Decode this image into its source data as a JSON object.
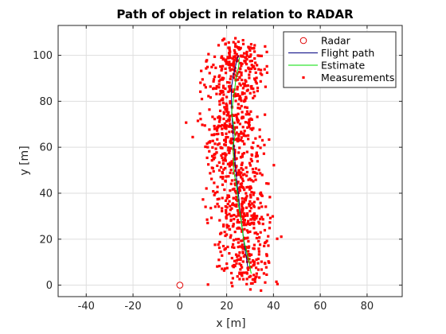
{
  "chart_data": {
    "type": "scatter",
    "title": "Path of object in relation to RADAR",
    "xlabel": "x [m]",
    "ylabel": "y [m]",
    "xlim": [
      -52,
      95
    ],
    "ylim": [
      -5,
      113
    ],
    "xticks": [
      -40,
      -20,
      0,
      20,
      40,
      60,
      80
    ],
    "yticks": [
      0,
      20,
      40,
      60,
      80,
      100
    ],
    "xtick_labels": [
      "-40",
      "-20",
      "0",
      "20",
      "40",
      "60",
      "80"
    ],
    "ytick_labels": [
      "0",
      "20",
      "40",
      "60",
      "80",
      "100"
    ],
    "grid": true,
    "legend_position": "top-right",
    "series": [
      {
        "name": "Radar",
        "kind": "marker-circle",
        "color": "#e00000",
        "points": [
          [
            0,
            0
          ]
        ]
      },
      {
        "name": "Flight path",
        "kind": "line",
        "color": "#00007f",
        "x": [
          29,
          28.3,
          27.5,
          26.9,
          26.2,
          25.6,
          25.2,
          24.6,
          24.1,
          23.6,
          23.3,
          22.9,
          22.6,
          22.3,
          22.1,
          22.0,
          22.2,
          22.8,
          23.5,
          24.2,
          25.0
        ],
        "y": [
          8,
          13,
          18,
          23,
          28,
          33,
          38,
          43,
          48,
          53,
          58,
          63,
          68,
          73,
          78,
          83,
          87,
          91,
          94,
          97,
          100
        ]
      },
      {
        "name": "Estimate",
        "kind": "line",
        "color": "#00dd00",
        "x": [
          30.5,
          29.6,
          28.4,
          27.2,
          26.6,
          25.9,
          25.0,
          24.6,
          23.9,
          22.9,
          23.0,
          22.6,
          23.6,
          22.9,
          22.1,
          22.7,
          23.4,
          24.0,
          25.1,
          25.4
        ],
        "y": [
          5,
          10,
          15,
          20,
          25,
          30,
          35,
          40,
          45,
          50,
          55,
          60,
          65,
          70,
          75,
          80,
          85,
          90,
          95,
          99
        ]
      },
      {
        "name": "Measurements",
        "kind": "scatter",
        "color": "#ff0000",
        "n_points": 1000,
        "path_y_range": [
          2,
          104
        ],
        "spread_x_std": 6,
        "spread_y_std": 3.5
      }
    ]
  }
}
